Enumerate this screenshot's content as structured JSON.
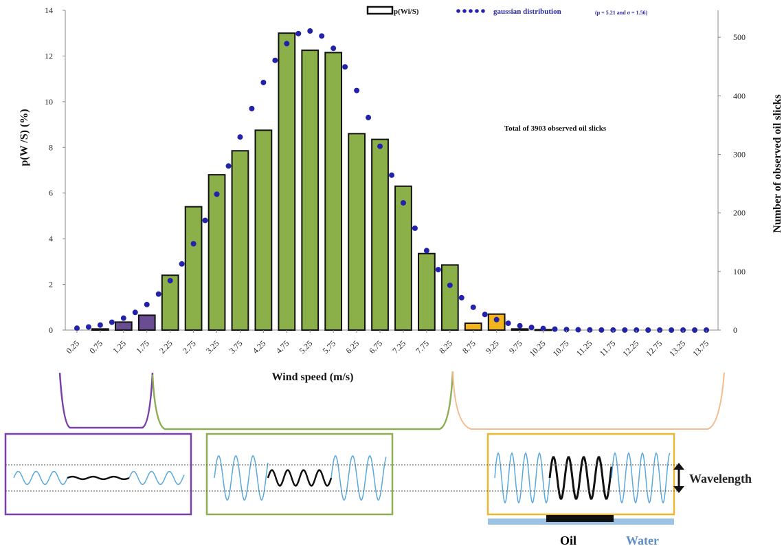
{
  "chart_data": {
    "type": "bar",
    "categories": [
      "0.25",
      "0.75",
      "1.25",
      "1.75",
      "2.25",
      "2.75",
      "3.25",
      "3.75",
      "4.25",
      "4.75",
      "5.25",
      "5.75",
      "6.25",
      "6.75",
      "7.25",
      "7.75",
      "8.25",
      "8.75",
      "9.25",
      "9.75",
      "10.25",
      "10.75",
      "11.25",
      "11.75",
      "12.25",
      "12.75",
      "13.25",
      "13.75"
    ],
    "series": [
      {
        "name": "p(Wi/S)",
        "values": [
          0,
          0.05,
          0.35,
          0.65,
          2.4,
          5.4,
          6.8,
          7.85,
          8.75,
          13.0,
          12.25,
          12.15,
          8.6,
          8.35,
          6.3,
          3.35,
          2.85,
          0.3,
          0.7,
          0.05,
          0.02,
          0,
          0,
          0,
          0,
          0,
          0,
          0
        ],
        "colors": [
          "#6a4c93",
          "#6a4c93",
          "#6a4c93",
          "#6a4c93",
          "#8bb04a",
          "#8bb04a",
          "#8bb04a",
          "#8bb04a",
          "#8bb04a",
          "#8bb04a",
          "#8bb04a",
          "#8bb04a",
          "#8bb04a",
          "#8bb04a",
          "#8bb04a",
          "#8bb04a",
          "#8bb04a",
          "#f2b51e",
          "#f2b51e",
          "#f2b51e",
          "#f2b51e",
          "#f2b51e",
          "#f2b51e",
          "#f2b51e",
          "#f2b51e",
          "#f2b51e",
          "#f2b51e",
          "#f2b51e"
        ]
      },
      {
        "name": "gaussian distribution",
        "legend_note": "(μ = 5.21 and σ = 1.56)",
        "type": "dotted-line",
        "color": "#2222aa",
        "mu": 5.21,
        "sigma": 1.56,
        "peak": 13.1
      }
    ],
    "xlabel": "Wind speed (m/s)",
    "ylabel": "p(W /S) (%)",
    "y2label": "Number of observed oil slicks",
    "ylim": [
      0,
      14
    ],
    "yticks": [
      "0",
      "2",
      "4",
      "6",
      "8",
      "10",
      "12",
      "14"
    ],
    "y2lim": [
      0,
      546
    ],
    "y2ticks": [
      "0",
      "100",
      "200",
      "300",
      "400",
      "500"
    ],
    "annotation": "Total of 3903 observed oil slicks",
    "legend_position": "top"
  },
  "schematic": {
    "colors": {
      "low": "#7b3fa8",
      "mid": "#8eae55",
      "high": "#f2bc8e",
      "box_high": "#e8b830",
      "water": "#5aa8dc",
      "oil": "#111111",
      "water_bar": "#9cc3e4"
    },
    "wavelength_label": "Wavelength",
    "oil_label": "Oil",
    "water_label": "Water",
    "panels": [
      {
        "id": "low",
        "water_amp": 0.25,
        "oil_amp": 0.05
      },
      {
        "id": "mid",
        "water_amp": 0.85,
        "oil_amp": 0.3
      },
      {
        "id": "high",
        "water_amp": 0.95,
        "oil_amp": 0.8
      }
    ]
  }
}
